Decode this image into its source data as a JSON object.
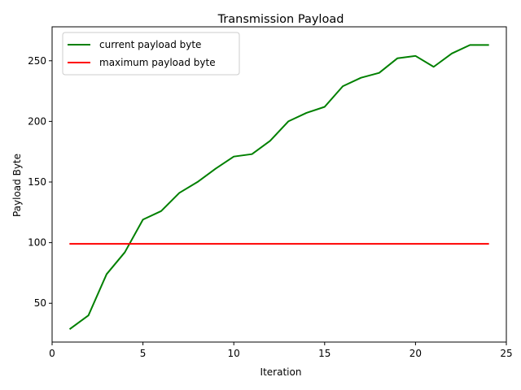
{
  "chart_data": {
    "type": "line",
    "title": "Transmission Payload",
    "xlabel": "Iteration",
    "ylabel": "Payload Byte",
    "xlim": [
      0,
      25
    ],
    "ylim": [
      18,
      278
    ],
    "xticks": [
      0,
      5,
      10,
      15,
      20,
      25
    ],
    "yticks": [
      50,
      100,
      150,
      200,
      250
    ],
    "grid": false,
    "legend": "top-left",
    "x": [
      1,
      2,
      3,
      4,
      5,
      6,
      7,
      8,
      9,
      10,
      11,
      12,
      13,
      14,
      15,
      16,
      17,
      18,
      19,
      20,
      21,
      22,
      23,
      24
    ],
    "series": [
      {
        "name": "current payload byte",
        "color": "#008000",
        "values": [
          29,
          40,
          74,
          92,
          119,
          126,
          141,
          150,
          161,
          171,
          173,
          184,
          200,
          207,
          212,
          229,
          236,
          240,
          252,
          254,
          245,
          256,
          263,
          263
        ]
      },
      {
        "name": "maximum payload byte",
        "color": "#ff0000",
        "values": [
          99,
          99,
          99,
          99,
          99,
          99,
          99,
          99,
          99,
          99,
          99,
          99,
          99,
          99,
          99,
          99,
          99,
          99,
          99,
          99,
          99,
          99,
          99,
          99
        ]
      }
    ]
  }
}
